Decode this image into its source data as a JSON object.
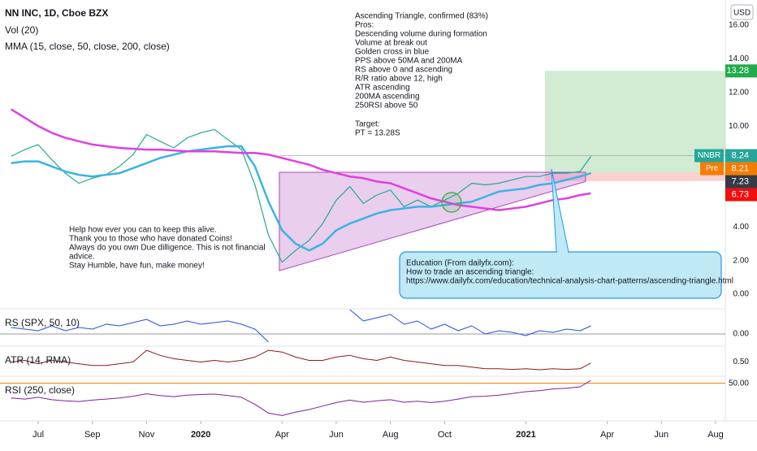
{
  "chart_data": {
    "type": "line",
    "title": "NN INC, 1D, Cboe BZX",
    "currency": "USD",
    "legend": [
      "Vol (20)",
      "MMA (15, close, 50, close, 200, close)"
    ],
    "xlim": [
      -0.41,
      26.36
    ],
    "xticks": [
      {
        "value": 1,
        "label": "Jul"
      },
      {
        "value": 3,
        "label": "Sep"
      },
      {
        "value": 5,
        "label": "Nov"
      },
      {
        "value": 7,
        "label": "2020"
      },
      {
        "value": 10,
        "label": "Apr"
      },
      {
        "value": 12,
        "label": "Jun"
      },
      {
        "value": 14,
        "label": "Aug"
      },
      {
        "value": 16,
        "label": "Oct"
      },
      {
        "value": 19,
        "label": "2021"
      },
      {
        "value": 22,
        "label": "Apr"
      },
      {
        "value": 24,
        "label": "Jun"
      },
      {
        "value": 26,
        "label": "Aug"
      }
    ],
    "x": [
      0,
      0.5,
      1,
      1.5,
      2,
      2.5,
      3,
      3.5,
      4,
      4.5,
      5,
      5.5,
      6,
      6.5,
      7,
      7.5,
      8,
      8.5,
      9,
      9.5,
      10,
      10.5,
      11,
      11.5,
      12,
      12.5,
      13,
      13.5,
      14,
      14.5,
      15,
      15.5,
      16,
      16.5,
      17,
      17.5,
      18,
      18.5,
      19,
      19.5,
      20,
      20.5,
      21,
      21.4
    ],
    "panes": [
      {
        "ylim": [
          -0.87,
          17.5
        ],
        "yticks": [
          {
            "value": 0,
            "label": "0.00"
          },
          {
            "value": 2,
            "label": "2.00"
          },
          {
            "value": 4,
            "label": "4.00"
          },
          {
            "value": 10,
            "label": "10.00"
          },
          {
            "value": 12,
            "label": "12.00"
          },
          {
            "value": 14,
            "label": "14.00"
          },
          {
            "value": 16,
            "label": "16.00"
          }
        ],
        "series": [
          {
            "color": "#26a69a",
            "width": 1.2,
            "values": [
              8.2,
              8.6,
              8.9,
              8.0,
              7.2,
              6.6,
              6.9,
              7.1,
              7.6,
              8.3,
              9.5,
              9.1,
              8.7,
              9.3,
              9.6,
              9.8,
              9.2,
              8.6,
              6.5,
              3.5,
              1.9,
              2.6,
              3.2,
              4.2,
              5.6,
              6.4,
              5.4,
              5.9,
              6.2,
              5.2,
              5.6,
              5.2,
              5.6,
              6.0,
              6.6,
              6.5,
              6.6,
              6.8,
              7.0,
              7.0,
              7.2,
              7.2,
              7.3,
              8.2
            ]
          },
          {
            "color": "#3bb3e3",
            "width": 2.5,
            "values": [
              7.8,
              7.9,
              7.9,
              7.6,
              7.3,
              7.1,
              7.0,
              7.1,
              7.2,
              7.5,
              7.8,
              8.1,
              8.3,
              8.5,
              8.6,
              8.7,
              8.8,
              8.8,
              7.6,
              5.5,
              3.8,
              3.0,
              2.6,
              3.0,
              3.8,
              4.2,
              4.5,
              4.8,
              5.0,
              5.1,
              5.2,
              5.2,
              5.3,
              5.4,
              5.5,
              5.8,
              6.1,
              6.2,
              6.3,
              6.5,
              6.6,
              6.8,
              7.0,
              7.2
            ]
          },
          {
            "color": "#e040e0",
            "width": 2.5,
            "values": [
              11.0,
              10.5,
              10.0,
              9.6,
              9.3,
              9.1,
              8.9,
              8.8,
              8.7,
              8.65,
              8.6,
              8.6,
              8.55,
              8.5,
              8.5,
              8.5,
              8.45,
              8.4,
              8.4,
              8.3,
              8.1,
              7.9,
              7.7,
              7.4,
              7.2,
              7.0,
              6.9,
              6.7,
              6.6,
              6.3,
              6.0,
              5.7,
              5.5,
              5.3,
              5.2,
              5.1,
              5.0,
              5.1,
              5.2,
              5.4,
              5.6,
              5.7,
              5.9,
              6.0
            ]
          }
        ]
      },
      {
        "title": "RS (SPX, 50, 10)",
        "ylim": [
          -0.7,
          1.55
        ],
        "yticks": [
          {
            "value": 0,
            "label": "0.00"
          }
        ],
        "tick_line_color": "#9598a1",
        "series": [
          {
            "color": "#1e53e5",
            "width": 1,
            "values": [
              0.4,
              0.3,
              0.2,
              0.5,
              0.2,
              0.4,
              0.3,
              0.6,
              0.5,
              0.7,
              0.9,
              0.5,
              0.6,
              0.8,
              0.6,
              0.7,
              0.8,
              0.6,
              0.3,
              -0.5,
              null,
              null,
              null,
              null,
              null,
              1.5,
              0.8,
              1.0,
              1.2,
              0.6,
              0.8,
              0.3,
              0.6,
              0.2,
              0.5,
              0.0,
              0.2,
              0.1,
              -0.1,
              0.2,
              0.1,
              0.3,
              0.2,
              0.5
            ]
          }
        ]
      },
      {
        "title": "ATR (14, RMA)",
        "ylim": [
          0.1,
          0.975
        ],
        "yticks": [
          {
            "value": 0.5,
            "label": "0.50"
          }
        ],
        "series": [
          {
            "color": "#8b1a1a",
            "width": 1,
            "values": [
              0.5,
              0.55,
              0.45,
              0.55,
              0.5,
              0.45,
              0.4,
              0.4,
              0.45,
              0.5,
              0.85,
              0.7,
              0.6,
              0.55,
              0.5,
              0.55,
              0.5,
              0.55,
              0.65,
              0.85,
              0.8,
              0.65,
              0.55,
              0.55,
              0.65,
              0.7,
              0.6,
              0.55,
              0.65,
              0.55,
              0.5,
              0.45,
              0.4,
              0.4,
              0.35,
              0.3,
              0.3,
              0.28,
              0.3,
              0.27,
              0.3,
              0.28,
              0.3,
              0.47
            ]
          }
        ]
      },
      {
        "title": "RSI (250, close)",
        "ylim": [
          39.5,
          52
        ],
        "yticks": [
          {
            "value": 50,
            "label": "50.00"
          }
        ],
        "tick_line_color": "#f57c00",
        "series": [
          {
            "color": "#7b1fa2",
            "width": 1,
            "values": [
              45.8,
              45.5,
              46.0,
              45.3,
              45.0,
              44.8,
              45.2,
              45.5,
              45.8,
              46.3,
              47.0,
              46.5,
              46.2,
              46.6,
              46.8,
              46.9,
              46.5,
              46.0,
              44.0,
              41.5,
              40.8,
              41.8,
              42.5,
              43.5,
              44.5,
              45.2,
              44.6,
              45.0,
              45.3,
              44.6,
              44.9,
              44.5,
              44.9,
              45.5,
              46.2,
              46.3,
              46.6,
              47.1,
              47.6,
              47.9,
              48.4,
              48.6,
              49.0,
              50.8
            ]
          }
        ]
      }
    ],
    "triangle": {
      "x": [
        9.9,
        21.2
      ],
      "top": 7.25,
      "bottom": [
        1.4,
        6.7
      ],
      "color": "#ce93d8"
    },
    "position": {
      "x": 19.7
    },
    "tags": [
      {
        "value": 13.28,
        "color": "#22ab4a"
      },
      {
        "name": "NNBR",
        "value": 8.24,
        "color": "#26a69a"
      },
      {
        "name": "Pre",
        "value": 8.21,
        "color": "#f57c00"
      },
      {
        "value": 7.23,
        "color": "#363a45"
      },
      {
        "value": 6.73,
        "color": "#f00e0e"
      }
    ],
    "notes": [
      [
        "Ascending Triangle, confirmed (83%)",
        "Pros:",
        "Descending volume during formation",
        "Volume at break out",
        "Golden cross in blue",
        "PPS above 50MA and 200MA",
        "RS above 0 and ascending",
        "R/R ratio above 12, high",
        "ATR ascending",
        "200MA ascending",
        "250RSI above 50"
      ],
      [
        "Target:",
        "PT = 13.28S"
      ]
    ],
    "help": [
      "Help how ever you can to keep this alive.",
      "Thank you to those who have donated Coins!",
      "Always do you own Due dilligence. This is not financial",
      "advice.",
      "Stay Humble, have fun, make money!"
    ],
    "education": [
      "Education (From dailyfx.com):",
      "How to trade an ascending triangle:",
      "https://www.dailyfx.com/education/technical-analysis-chart-patterns/ascending-triangle.html"
    ]
  }
}
